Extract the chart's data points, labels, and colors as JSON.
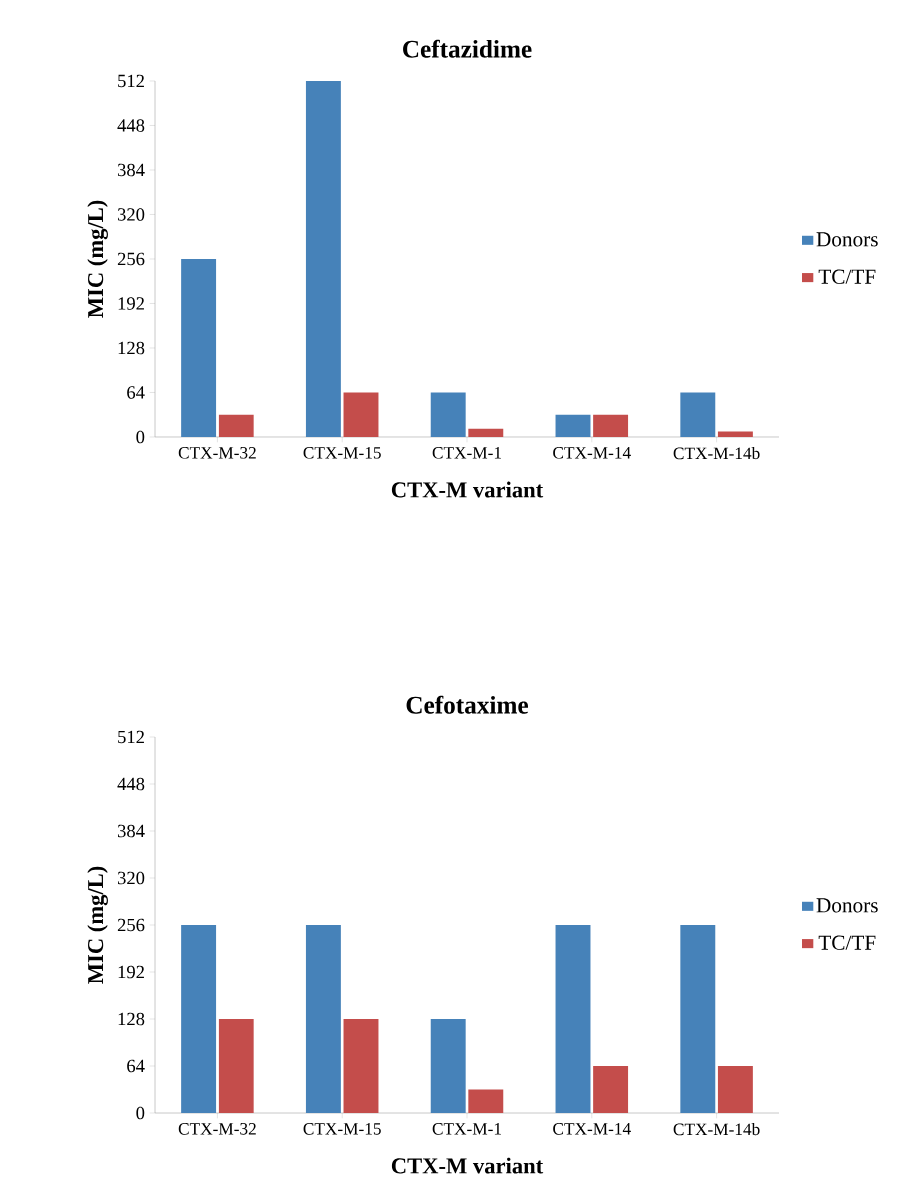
{
  "chart_data": [
    {
      "type": "bar",
      "title": "Ceftazidime",
      "xlabel": "CTX-M variant",
      "ylabel": "MIC (mg/L)",
      "categories": [
        "CTX-M-32",
        "CTX-M-15",
        "CTX-M-1",
        "CTX-M-14",
        "CTX-M-14b"
      ],
      "series": [
        {
          "name": "Donors",
          "color": "#4682b9",
          "values": [
            256,
            512,
            64,
            32,
            64
          ]
        },
        {
          "name": "TC/TF",
          "color": "#c44d4b",
          "values": [
            32,
            64,
            12,
            32,
            8
          ]
        }
      ],
      "ylim": [
        0,
        512
      ],
      "yticks": [
        0,
        64,
        128,
        192,
        256,
        320,
        384,
        448,
        512
      ],
      "legend": "right"
    },
    {
      "type": "bar",
      "title": "Cefotaxime",
      "xlabel": "CTX-M variant",
      "ylabel": "MIC (mg/L)",
      "categories": [
        "CTX-M-32",
        "CTX-M-15",
        "CTX-M-1",
        "CTX-M-14",
        "CTX-M-14b"
      ],
      "series": [
        {
          "name": "Donors",
          "color": "#4682b9",
          "values": [
            256,
            256,
            128,
            256,
            256
          ]
        },
        {
          "name": "TC/TF",
          "color": "#c44d4b",
          "values": [
            128,
            128,
            32,
            64,
            64
          ]
        }
      ],
      "ylim": [
        0,
        512
      ],
      "yticks": [
        0,
        64,
        128,
        192,
        256,
        320,
        384,
        448,
        512
      ],
      "legend": "right"
    }
  ]
}
